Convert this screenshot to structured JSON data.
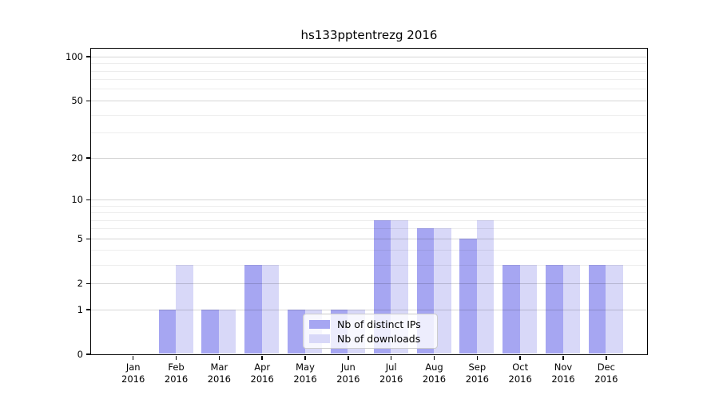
{
  "title": "hs133pptentrezg 2016",
  "chart_data": {
    "type": "bar",
    "title": "hs133pptentrezg 2016",
    "categories": [
      "Jan 2016",
      "Feb 2016",
      "Mar 2016",
      "Apr 2016",
      "May 2016",
      "Jun 2016",
      "Jul 2016",
      "Aug 2016",
      "Sep 2016",
      "Oct 2016",
      "Nov 2016",
      "Dec 2016"
    ],
    "series": [
      {
        "name": "Nb of distinct IPs",
        "color": "#a6a6f2",
        "values": [
          0,
          1,
          1,
          3,
          1,
          1,
          7,
          6,
          5,
          3,
          3,
          3
        ]
      },
      {
        "name": "Nb of downloads",
        "color": "#d8d8f8",
        "values": [
          0,
          3,
          1,
          3,
          1,
          1,
          7,
          6,
          7,
          3,
          3,
          3
        ]
      }
    ],
    "xlabel": "",
    "ylabel": "",
    "yscale": "log1p",
    "ylim": [
      0,
      114
    ],
    "yticks": [
      0,
      1,
      2,
      5,
      10,
      20,
      50,
      100
    ],
    "minor_yticks": [
      3,
      4,
      6,
      7,
      8,
      9,
      30,
      40,
      60,
      70,
      80,
      90
    ],
    "grid": true,
    "legend_position": "lower center"
  },
  "colors": {
    "background": "#ffffff",
    "axis": "#000000",
    "major_grid": "#d6d6d6",
    "minor_grid": "#ededed",
    "legend_border": "#cccccc"
  }
}
